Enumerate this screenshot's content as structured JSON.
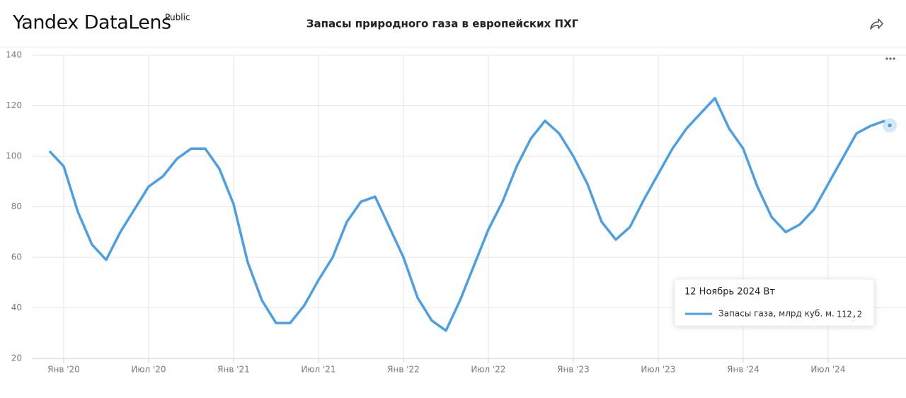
{
  "header": {
    "logo": "Yandex DataLens",
    "badge": "Public"
  },
  "chart_data": {
    "type": "line",
    "title": "Запасы природного газа в европейских ПХГ",
    "x": [
      "2019-12",
      "2020-01",
      "2020-02",
      "2020-03",
      "2020-04",
      "2020-05",
      "2020-06",
      "2020-07",
      "2020-08",
      "2020-09",
      "2020-10",
      "2020-11",
      "2020-12",
      "2021-01",
      "2021-02",
      "2021-03",
      "2021-04",
      "2021-05",
      "2021-06",
      "2021-07",
      "2021-08",
      "2021-09",
      "2021-10",
      "2021-11",
      "2021-12",
      "2022-01",
      "2022-02",
      "2022-03",
      "2022-04",
      "2022-05",
      "2022-06",
      "2022-07",
      "2022-08",
      "2022-09",
      "2022-10",
      "2022-11",
      "2022-12",
      "2023-01",
      "2023-02",
      "2023-03",
      "2023-04",
      "2023-05",
      "2023-06",
      "2023-07",
      "2023-08",
      "2023-09",
      "2023-10",
      "2023-11",
      "2023-12",
      "2024-01",
      "2024-02",
      "2024-03",
      "2024-04",
      "2024-05",
      "2024-06",
      "2024-07",
      "2024-08",
      "2024-09",
      "2024-10",
      "2024-11"
    ],
    "series": [
      {
        "name": "Запасы газа, млрд куб. м.",
        "color": "#4d9fe3",
        "values": [
          102,
          96,
          78,
          65,
          59,
          70,
          79,
          88,
          92,
          99,
          103,
          103,
          95,
          81,
          58,
          43,
          34,
          34,
          41,
          51,
          60,
          74,
          82,
          84,
          72,
          60,
          44,
          35,
          31,
          43,
          57,
          71,
          82,
          96,
          107,
          114,
          109,
          100,
          89,
          74,
          67,
          72,
          83,
          93,
          103,
          111,
          117,
          123,
          111,
          103,
          88,
          76,
          70,
          73,
          79,
          89,
          99,
          109,
          112,
          114
        ]
      }
    ],
    "xlim": [
      "2019-11",
      "2024-12"
    ],
    "xticks": [
      {
        "value": "2020-01",
        "label": "Янв '20"
      },
      {
        "value": "2020-07",
        "label": "Июл '20"
      },
      {
        "value": "2021-01",
        "label": "Янв '21"
      },
      {
        "value": "2021-07",
        "label": "Июл '21"
      },
      {
        "value": "2022-01",
        "label": "Янв '22"
      },
      {
        "value": "2022-07",
        "label": "Июл '22"
      },
      {
        "value": "2023-01",
        "label": "Янв '23"
      },
      {
        "value": "2023-07",
        "label": "Июл '23"
      },
      {
        "value": "2024-01",
        "label": "Янв '24"
      },
      {
        "value": "2024-07",
        "label": "Июл '24"
      }
    ],
    "ylim": [
      20,
      140
    ],
    "yticks": [
      20,
      40,
      60,
      80,
      100,
      120,
      140
    ],
    "grid": true,
    "tooltip": {
      "date": "12 Ноябрь 2024 Вт",
      "value": {
        "value": 112.2,
        "label": "112,2"
      }
    }
  }
}
